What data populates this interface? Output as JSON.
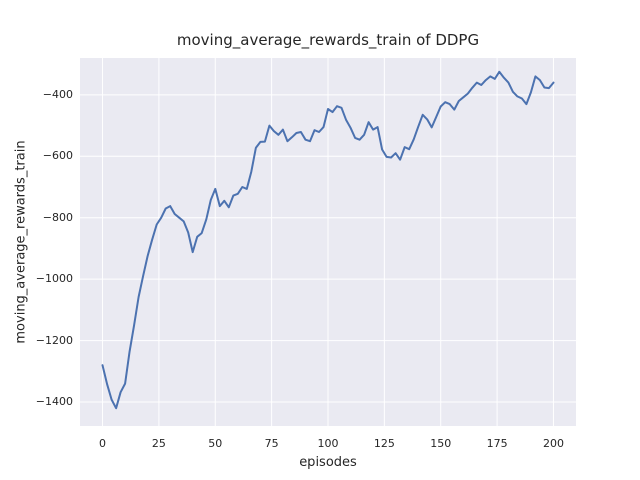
{
  "chart_data": {
    "type": "line",
    "title": "moving_average_rewards_train of DDPG",
    "xlabel": "episodes",
    "ylabel": "moving_average_rewards_train",
    "x_ticks": [
      0,
      25,
      50,
      75,
      100,
      125,
      150,
      175,
      200
    ],
    "y_ticks": [
      -400,
      -600,
      -800,
      -1000,
      -1200,
      -1400
    ],
    "xlim": [
      -10,
      210
    ],
    "ylim": [
      -1478,
      -280
    ],
    "grid": true,
    "legend": null,
    "colors": {
      "line": "#4C72B0",
      "plot_background": "#EAEAF2",
      "grid": "#FFFFFF",
      "figure_background": "#FFFFFF",
      "text": "#262626"
    },
    "series": [
      {
        "name": "moving_average_rewards_train",
        "x": [
          0,
          2,
          4,
          6,
          8,
          10,
          12,
          14,
          16,
          18,
          20,
          22,
          24,
          26,
          28,
          30,
          32,
          34,
          36,
          38,
          40,
          42,
          44,
          46,
          48,
          50,
          52,
          54,
          56,
          58,
          60,
          62,
          64,
          66,
          68,
          70,
          72,
          74,
          76,
          78,
          80,
          82,
          84,
          86,
          88,
          90,
          92,
          94,
          96,
          98,
          100,
          102,
          104,
          106,
          108,
          110,
          112,
          114,
          116,
          118,
          120,
          122,
          124,
          126,
          128,
          130,
          132,
          134,
          136,
          138,
          140,
          142,
          144,
          146,
          148,
          150,
          152,
          154,
          156,
          158,
          160,
          162,
          164,
          166,
          168,
          170,
          172,
          174,
          176,
          178,
          180,
          182,
          184,
          186,
          188,
          190,
          192,
          194,
          196,
          198,
          200
        ],
        "y": [
          -1280,
          -1342,
          -1392,
          -1420,
          -1368,
          -1340,
          -1235,
          -1150,
          -1058,
          -990,
          -925,
          -872,
          -822,
          -800,
          -770,
          -762,
          -788,
          -800,
          -812,
          -848,
          -912,
          -862,
          -850,
          -805,
          -742,
          -706,
          -762,
          -745,
          -766,
          -728,
          -722,
          -700,
          -706,
          -650,
          -572,
          -553,
          -552,
          -500,
          -518,
          -530,
          -513,
          -551,
          -538,
          -524,
          -521,
          -546,
          -551,
          -515,
          -521,
          -505,
          -446,
          -456,
          -437,
          -442,
          -481,
          -507,
          -540,
          -546,
          -530,
          -489,
          -513,
          -505,
          -578,
          -602,
          -604,
          -590,
          -611,
          -570,
          -577,
          -545,
          -504,
          -465,
          -480,
          -506,
          -472,
          -438,
          -424,
          -430,
          -448,
          -420,
          -408,
          -396,
          -377,
          -360,
          -368,
          -352,
          -340,
          -348,
          -325,
          -344,
          -360,
          -390,
          -405,
          -412,
          -430,
          -392,
          -340,
          -352,
          -376,
          -378,
          -360
        ]
      }
    ]
  }
}
